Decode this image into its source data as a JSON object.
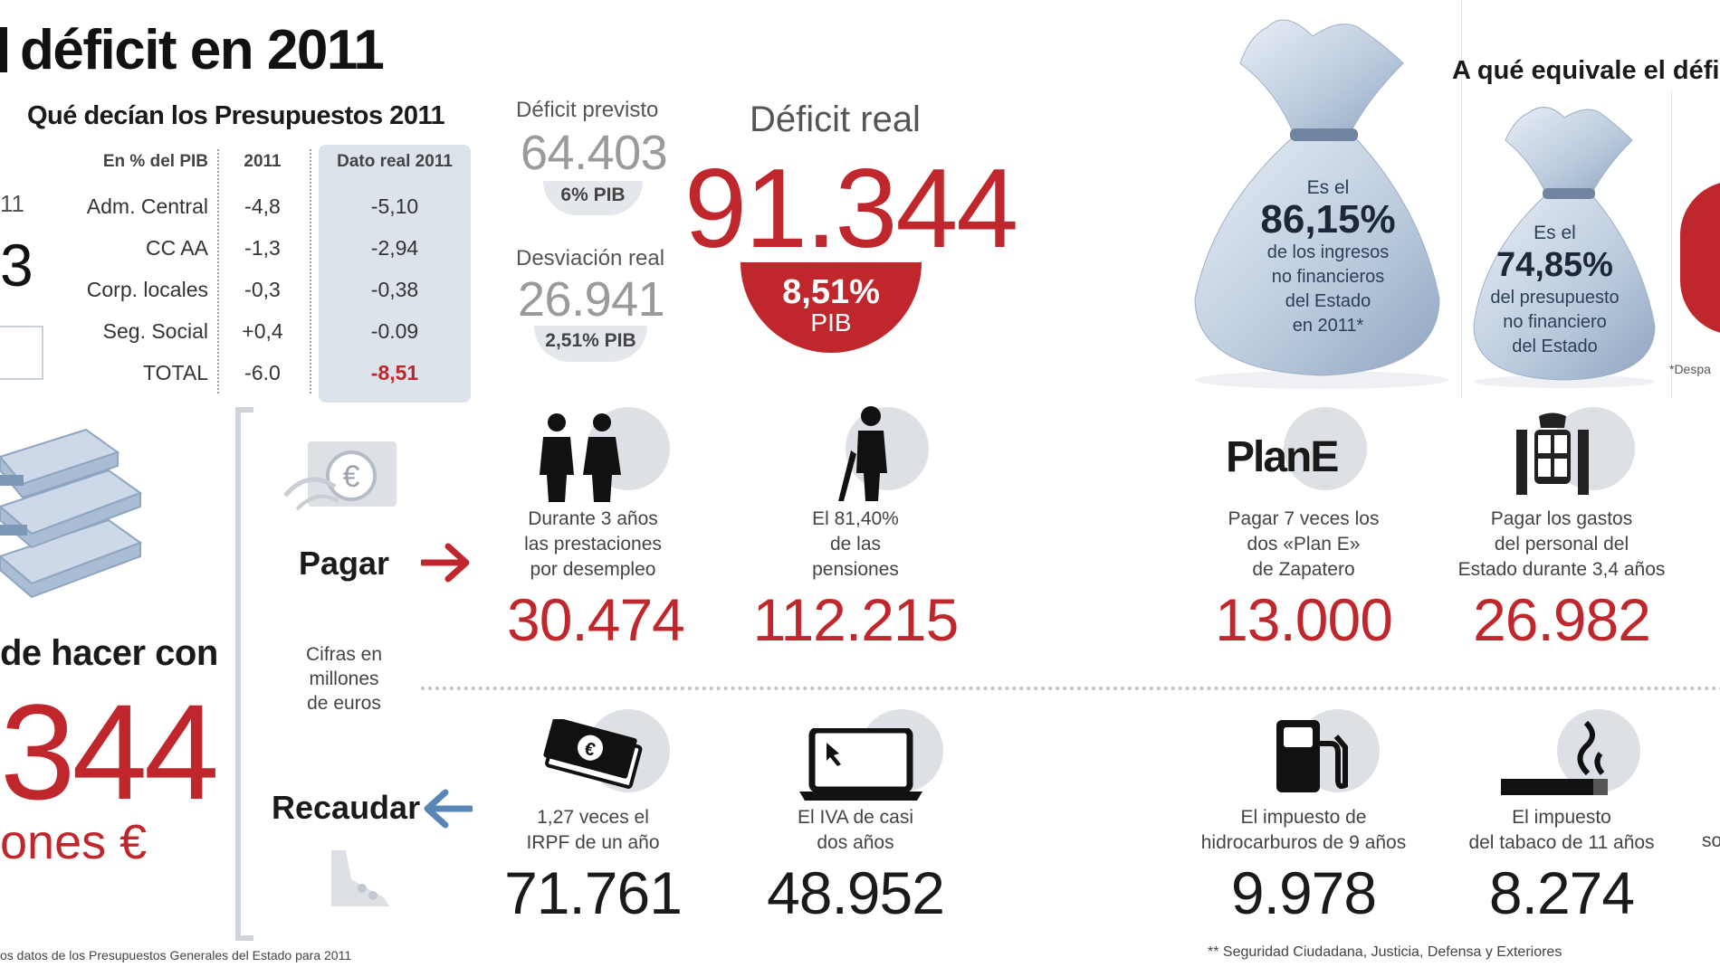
{
  "title": "déficit en 2011",
  "budget": {
    "subtitle": "Qué decían los Presupuestos 2011",
    "headers": {
      "label": "En % del PIB",
      "y2011": "2011",
      "real": "Dato real 2011"
    },
    "rows": [
      {
        "label": "Adm. Central",
        "y2011": "-4,8",
        "real": "-5,10"
      },
      {
        "label": "CC AA",
        "y2011": "-1,3",
        "real": "-2,94"
      },
      {
        "label": "Corp. locales",
        "y2011": "-0,3",
        "real": "-0,38"
      },
      {
        "label": "Seg. Social",
        "y2011": "+0,4",
        "real": "-0.09"
      },
      {
        "label": "TOTAL",
        "y2011": "-6.0",
        "real": "-8,51"
      }
    ],
    "left_partial_label": "11",
    "left_partial_value": "3"
  },
  "deficit": {
    "prev_label": "Déficit previsto",
    "prev_value": "64.403",
    "prev_pib": "6% PIB",
    "dev_label": "Desviación real",
    "dev_value": "26.941",
    "dev_pib": "2,51% PIB",
    "real_label": "Déficit real",
    "real_value": "91.344",
    "real_pct": "8,51%",
    "real_pib": "PIB"
  },
  "equivalence": {
    "title": "A qué equivale el défi",
    "bag1": {
      "pre": "Es el",
      "pct": "86,15%",
      "desc": [
        "de los ingresos",
        "no financieros",
        "del Estado",
        "en 2011*"
      ]
    },
    "bag2": {
      "pre": "Es el",
      "pct": "74,85%",
      "desc": [
        "del presupuesto",
        "no financiero",
        "del Estado"
      ]
    },
    "footnote": "*Despa"
  },
  "could": {
    "title": "de hacer con",
    "value": "344",
    "unit": "ones €",
    "footnote": "os datos de los Presupuestos Generales del Estado para 2011"
  },
  "pay": {
    "label": "Pagar",
    "units_note": [
      "Cifras en",
      "millones",
      "de euros"
    ],
    "items": [
      {
        "desc": [
          "Durante 3 años",
          "las prestaciones",
          "por desempleo"
        ],
        "value": "30.474",
        "icon": "unemployed-people-icon"
      },
      {
        "desc": [
          "El 81,40%",
          "de las",
          "pensiones"
        ],
        "value": "112.215",
        "icon": "pensioner-icon"
      },
      {
        "desc": [
          "Pagar 7 veces los",
          "dos «Plan E»",
          "de Zapatero"
        ],
        "value": "13.000",
        "icon": "plan-e-logo"
      },
      {
        "desc": [
          "Pagar los gastos",
          "del personal del",
          "Estado durante 3,4 años"
        ],
        "value": "26.982",
        "icon": "coat-of-arms-icon"
      }
    ],
    "plan_e_logo": "PlanE"
  },
  "collect": {
    "label": "Recaudar",
    "items": [
      {
        "desc": [
          "1,27 veces el",
          "IRPF de un año"
        ],
        "value": "71.761",
        "icon": "banknotes-icon"
      },
      {
        "desc": [
          "El IVA de casi",
          "dos años"
        ],
        "value": "48.952",
        "icon": "laptop-icon"
      },
      {
        "desc": [
          "El impuesto de",
          "hidrocarburos de 9 años"
        ],
        "value": "9.978",
        "icon": "fuel-pump-icon"
      },
      {
        "desc": [
          "El impuesto",
          "del tabaco de 11 años"
        ],
        "value": "8.274",
        "icon": "cigarette-icon"
      }
    ],
    "footnote": "** Seguridad Ciudadana, Justicia, Defensa y Exteriores",
    "partial_right": "so"
  }
}
